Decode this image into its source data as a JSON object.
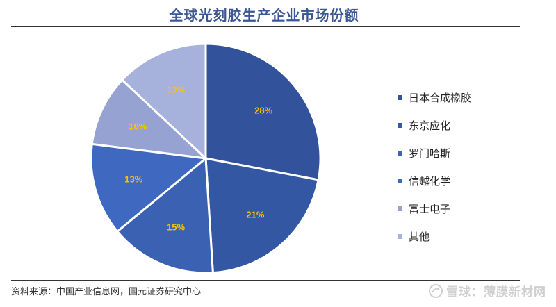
{
  "header": {
    "title": "全球光刻胶生产企业市场份额"
  },
  "chart_data": {
    "type": "pie",
    "title": "全球光刻胶生产企业市场份额",
    "start": "12 o'clock, clockwise",
    "slices": [
      {
        "name": "日本合成橡胶",
        "value": 28,
        "label": "28%",
        "color": "#32529b"
      },
      {
        "name": "东京应化",
        "value": 21,
        "label": "21%",
        "color": "#3457a4"
      },
      {
        "name": "罗门哈斯",
        "value": 15,
        "label": "15%",
        "color": "#3b61b3"
      },
      {
        "name": "信越化学",
        "value": 13,
        "label": "13%",
        "color": "#3f69c1"
      },
      {
        "name": "富士电子",
        "value": 10,
        "label": "10%",
        "color": "#95a2d2"
      },
      {
        "name": "其他",
        "value": 13,
        "label": "13%",
        "color": "#a6b2dc"
      }
    ],
    "label_color": "#ffc000",
    "legend_position": "right"
  },
  "footer": {
    "source": "资料来源：中国产业信息网，国元证券研究中心",
    "watermark": "雪球：薄膜新材网"
  }
}
